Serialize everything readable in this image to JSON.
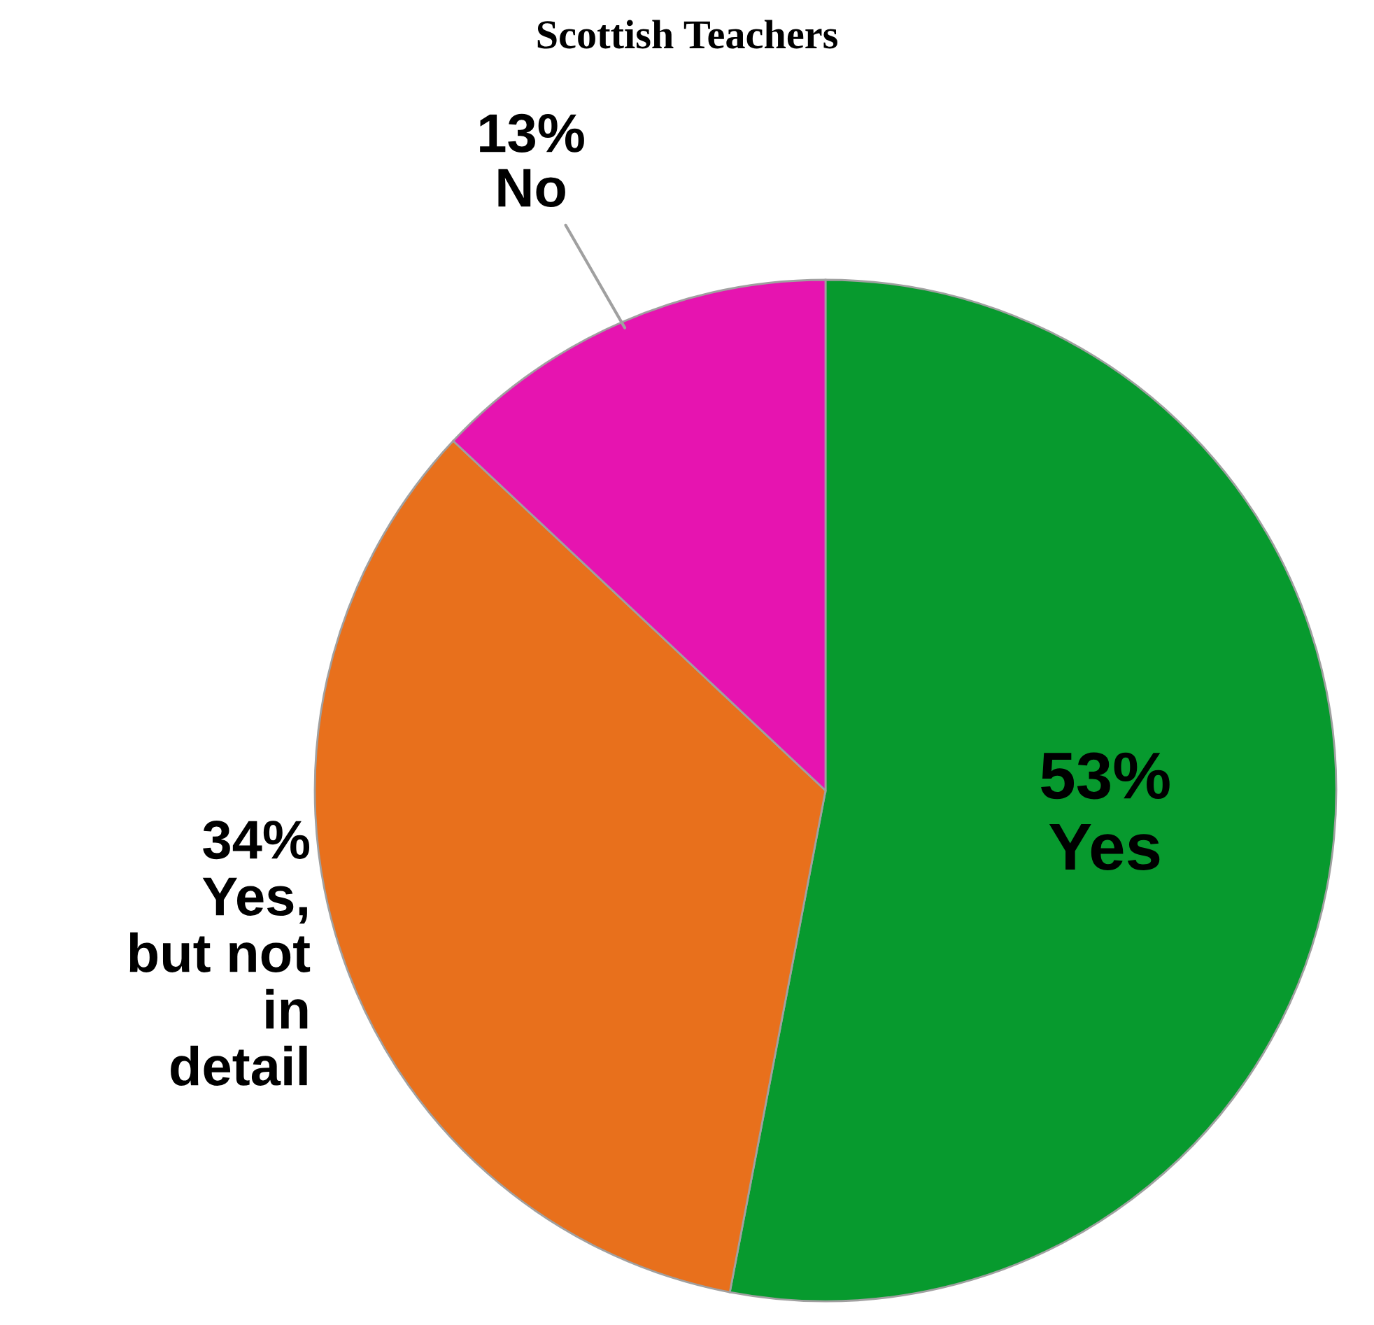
{
  "chart_data": {
    "type": "pie",
    "title": "Scottish Teachers",
    "categories": [
      "Yes",
      "Yes,\nbut not\nin\ndetail",
      "No"
    ],
    "values": [
      53,
      34,
      13
    ],
    "colors": [
      "#079a2e",
      "#e8701c",
      "#e614b0"
    ],
    "value_labels": [
      "53%",
      "34%",
      "13%"
    ],
    "legend": false
  }
}
